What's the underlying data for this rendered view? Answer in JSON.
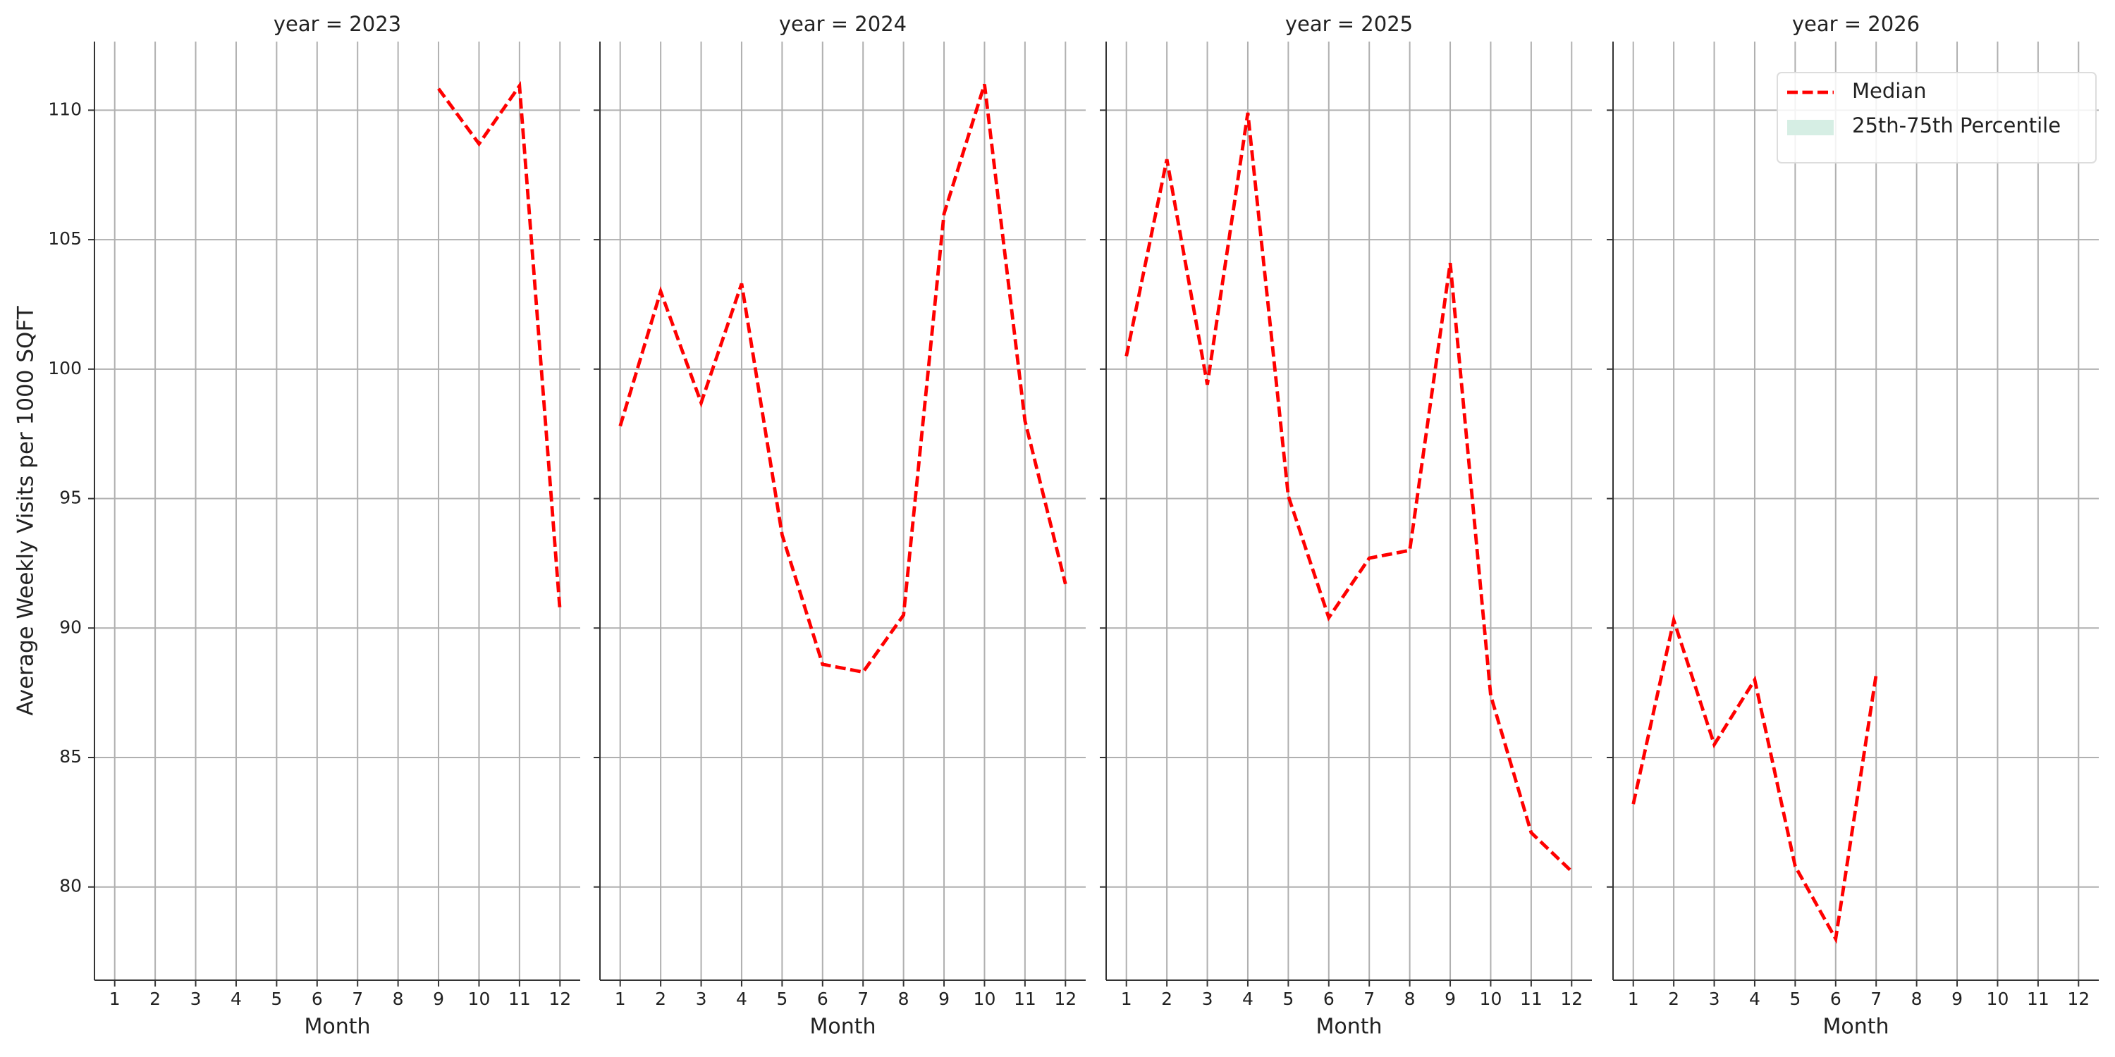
{
  "chart_data": [
    {
      "type": "line",
      "title": "year = 2023",
      "xlabel": "Month",
      "ylabel": "Average Weekly Visits per 1000 SQFT",
      "x": [
        1,
        2,
        3,
        4,
        5,
        6,
        7,
        8,
        9,
        10,
        11,
        12
      ],
      "xlim": [
        0.5,
        12.5
      ],
      "xticks": [
        1,
        2,
        3,
        4,
        5,
        6,
        7,
        8,
        9,
        10,
        11,
        12
      ],
      "ylim": [
        76.4,
        112.65
      ],
      "yticks": [
        80,
        85,
        90,
        95,
        100,
        105,
        110
      ],
      "grid": true,
      "series": [
        {
          "name": "Median",
          "color": "#ff0000",
          "values": [
            null,
            null,
            null,
            null,
            null,
            null,
            null,
            null,
            110.83,
            108.7,
            110.94,
            90.68
          ]
        }
      ]
    },
    {
      "type": "line",
      "title": "year = 2024",
      "xlabel": "Month",
      "x": [
        1,
        2,
        3,
        4,
        5,
        6,
        7,
        8,
        9,
        10,
        11,
        12
      ],
      "xlim": [
        0.5,
        12.5
      ],
      "xticks": [
        1,
        2,
        3,
        4,
        5,
        6,
        7,
        8,
        9,
        10,
        11,
        12
      ],
      "ylim": [
        76.4,
        112.65
      ],
      "yticks": [
        80,
        85,
        90,
        95,
        100,
        105,
        110
      ],
      "grid": true,
      "series": [
        {
          "name": "Median",
          "color": "#ff0000",
          "values": [
            97.8,
            103.0,
            98.7,
            103.3,
            93.6,
            88.6,
            88.3,
            90.5,
            106.0,
            111.0,
            98.0,
            91.7
          ]
        }
      ]
    },
    {
      "type": "line",
      "title": "year = 2025",
      "xlabel": "Month",
      "x": [
        1,
        2,
        3,
        4,
        5,
        6,
        7,
        8,
        9,
        10,
        11,
        12
      ],
      "xlim": [
        0.5,
        12.5
      ],
      "xticks": [
        1,
        2,
        3,
        4,
        5,
        6,
        7,
        8,
        9,
        10,
        11,
        12
      ],
      "ylim": [
        76.4,
        112.65
      ],
      "yticks": [
        80,
        85,
        90,
        95,
        100,
        105,
        110
      ],
      "grid": true,
      "series": [
        {
          "name": "Median",
          "color": "#ff0000",
          "values": [
            100.5,
            108.1,
            99.4,
            109.9,
            95.1,
            90.4,
            92.7,
            93.0,
            104.1,
            87.4,
            82.1,
            80.6
          ]
        }
      ]
    },
    {
      "type": "line",
      "title": "year = 2026",
      "xlabel": "Month",
      "x": [
        1,
        2,
        3,
        4,
        5,
        6,
        7,
        8,
        9,
        10,
        11,
        12
      ],
      "xlim": [
        0.5,
        12.5
      ],
      "xticks": [
        1,
        2,
        3,
        4,
        5,
        6,
        7,
        8,
        9,
        10,
        11,
        12
      ],
      "ylim": [
        76.4,
        112.65
      ],
      "yticks": [
        80,
        85,
        90,
        95,
        100,
        105,
        110
      ],
      "grid": true,
      "legend": "upper right",
      "series": [
        {
          "name": "Median",
          "color": "#ff0000",
          "values": [
            83.2,
            90.3,
            85.5,
            88.0,
            80.8,
            78.0,
            88.2,
            null,
            null,
            null,
            null,
            null
          ]
        },
        {
          "name": "25th-75th Percentile",
          "color": "#d6eee4",
          "type": "area",
          "values": [
            null,
            null,
            null,
            null,
            null,
            null,
            null,
            null,
            null,
            null,
            null,
            null
          ]
        }
      ]
    }
  ]
}
